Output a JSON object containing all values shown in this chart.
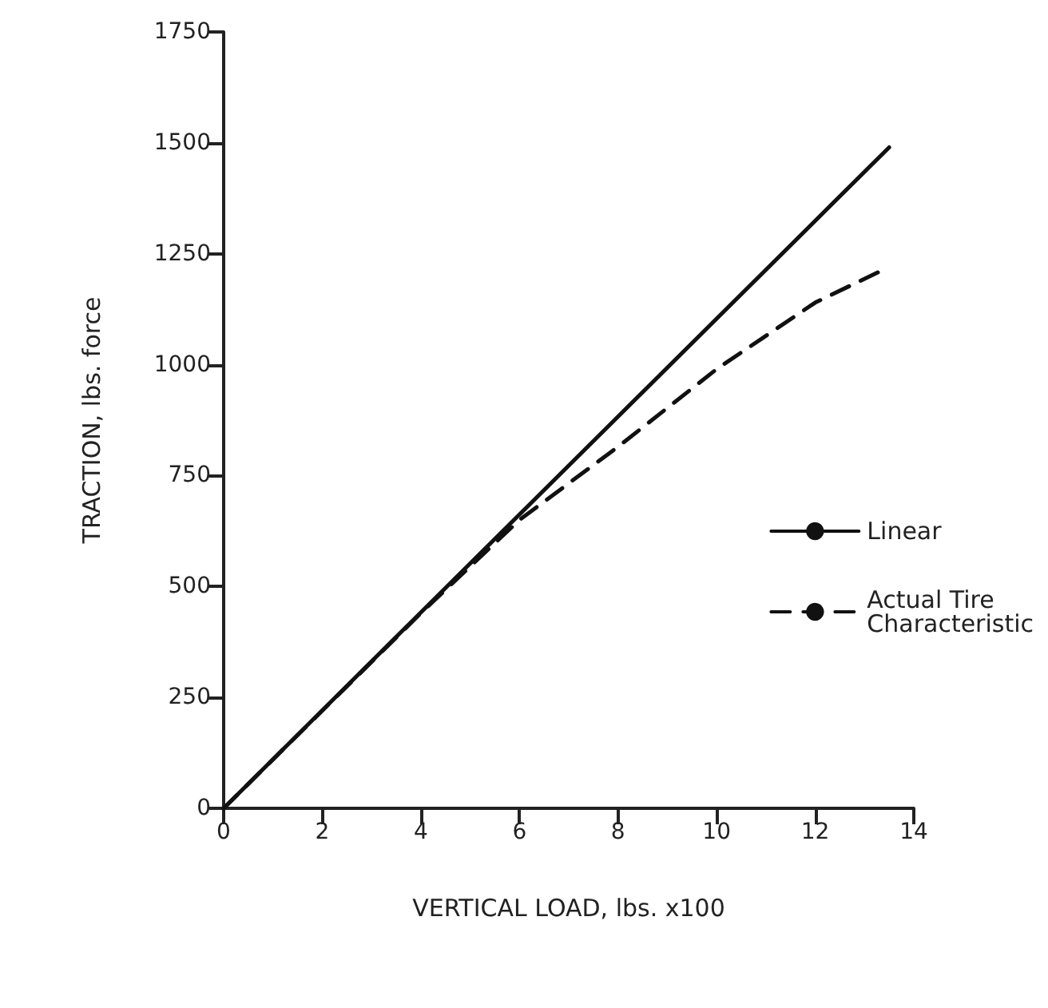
{
  "chart_data": {
    "type": "line",
    "xlabel": "VERTICAL LOAD, lbs. x100",
    "ylabel": "TRACTION, lbs. force",
    "xlim": [
      0,
      14
    ],
    "xticks": [
      0,
      2,
      4,
      6,
      8,
      10,
      12,
      14
    ],
    "ylim": [
      0,
      1750
    ],
    "yticks": [
      0,
      250,
      500,
      750,
      1000,
      1250,
      1500,
      1750
    ],
    "grid": false,
    "legend": "right",
    "marker": "none",
    "series": [
      {
        "name": "Linear",
        "color": "#111111",
        "line_style": "solid",
        "x": [
          0,
          13.5
        ],
        "values": [
          0,
          1490
        ]
      },
      {
        "name": "Actual Tire Characteristic",
        "color": "#111111",
        "line_style": "dashed",
        "x": [
          0,
          2,
          4,
          6,
          8,
          10,
          12,
          13.4
        ],
        "values": [
          0,
          220,
          440,
          650,
          815,
          990,
          1140,
          1215
        ]
      }
    ]
  }
}
